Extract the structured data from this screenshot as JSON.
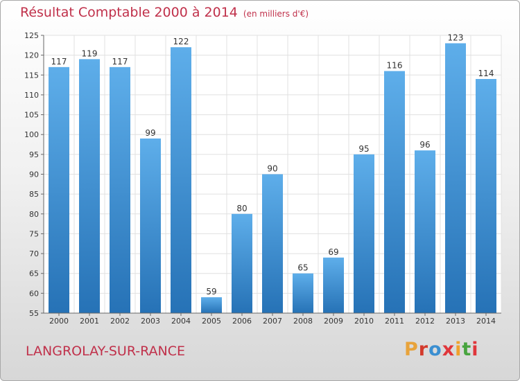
{
  "header": {
    "title": "Résultat Comptable 2000 à 2014",
    "subtitle": "(en milliers d'€)"
  },
  "footer": {
    "place": "LANGROLAY-SUR-RANCE",
    "brand": "Proxiti"
  },
  "colors": {
    "title": "#c0304a",
    "bar_top": "#5eaeea",
    "bar_bottom": "#2672b6",
    "grid": "#e0e0e0",
    "brand_letters": [
      "#e8a33b",
      "#d33a2c",
      "#3b8fd1",
      "#e0363b",
      "#f0a12c",
      "#48a43f",
      "#e0363b"
    ]
  },
  "chart_data": {
    "type": "bar",
    "title": "Résultat Comptable 2000 à 2014",
    "subtitle": "(en milliers d'€)",
    "xlabel": "",
    "ylabel": "",
    "ylim": [
      55,
      125
    ],
    "yticks": [
      55,
      60,
      65,
      70,
      75,
      80,
      85,
      90,
      95,
      100,
      105,
      110,
      115,
      120,
      125
    ],
    "grid": true,
    "legend": "none",
    "categories": [
      "2000",
      "2001",
      "2002",
      "2003",
      "2004",
      "2005",
      "2006",
      "2007",
      "2008",
      "2009",
      "2010",
      "2011",
      "2012",
      "2013",
      "2014"
    ],
    "values": [
      117,
      119,
      117,
      99,
      122,
      59,
      80,
      90,
      65,
      69,
      95,
      116,
      96,
      123,
      114
    ]
  }
}
